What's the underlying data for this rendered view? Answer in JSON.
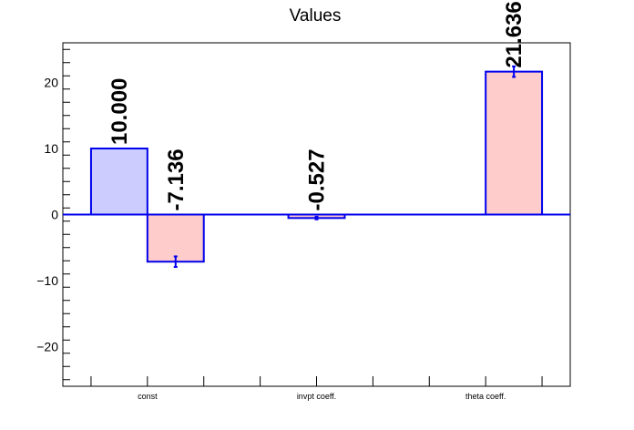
{
  "chart_data": {
    "type": "bar",
    "title": "Values",
    "xlabel": "",
    "ylabel": "",
    "ylim": [
      -26,
      26
    ],
    "y_ticks": [
      -20,
      -10,
      0,
      10,
      20
    ],
    "y_tick_labels": [
      "−20",
      "−10",
      "0",
      "10",
      "20"
    ],
    "categories": [
      "const",
      "invpt coeff.",
      "theta coeff."
    ],
    "grid": false,
    "bars": [
      {
        "category": "const",
        "position": "left",
        "value": 10.0,
        "error": 0,
        "label": "10.000",
        "fill": "#ccccff"
      },
      {
        "category": "const",
        "position": "right",
        "value": -7.136,
        "error": 0.8,
        "label": "-7.136",
        "fill": "#ffcccc"
      },
      {
        "category": "invpt coeff.",
        "position": "center",
        "value": -0.527,
        "error": 0.2,
        "label": "-0.527",
        "fill": "#ffcccc"
      },
      {
        "category": "theta coeff.",
        "position": "right",
        "value": 21.636,
        "error": 0.8,
        "label": "21.636",
        "fill": "#ffcccc"
      }
    ],
    "colors": {
      "outline": "#0000ee",
      "zero_line": "#0000ee",
      "axis": "#000000"
    }
  }
}
